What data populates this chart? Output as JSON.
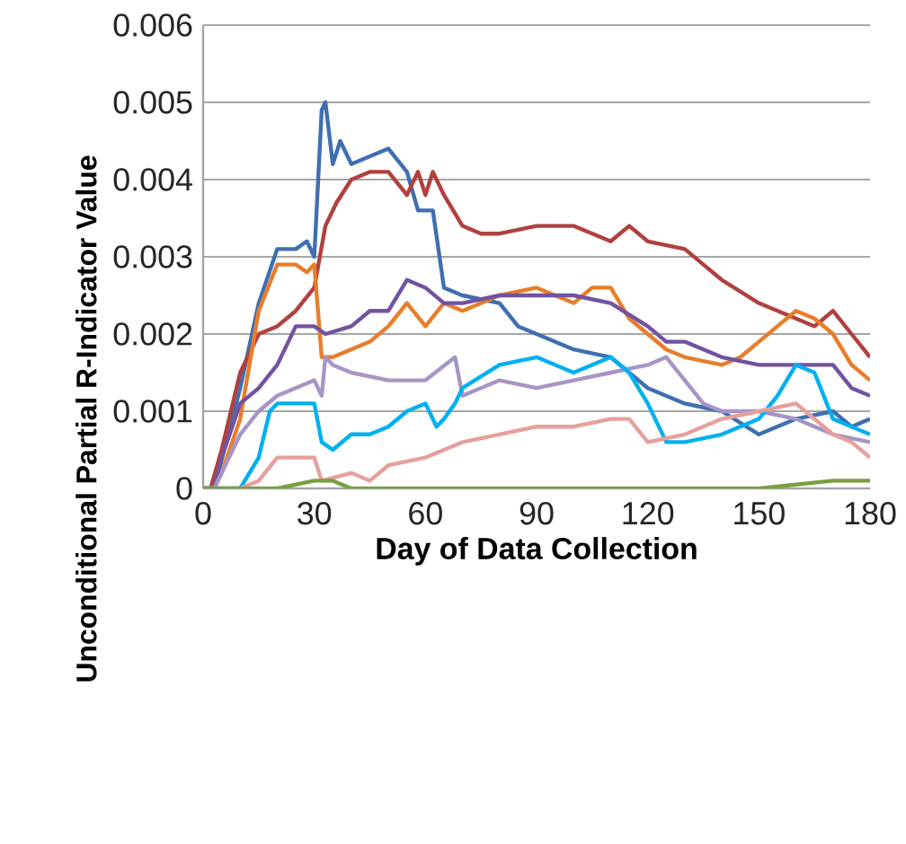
{
  "chart_data": {
    "type": "line",
    "xlabel": "Day of Data Collection",
    "ylabel": "Unconditional Partial R-Indicator Value",
    "xlim": [
      0,
      180
    ],
    "ylim": [
      0,
      0.006
    ],
    "xticks": [
      0,
      30,
      60,
      90,
      120,
      150,
      180
    ],
    "yticks": [
      0,
      0.001,
      0.002,
      0.003,
      0.004,
      0.005,
      0.006
    ],
    "grid": "y",
    "marker": "none",
    "line_style": "solid",
    "series": [
      {
        "color": "#3f6fb0",
        "x": [
          0,
          3,
          10,
          15,
          20,
          25,
          28,
          30,
          32,
          33,
          35,
          37,
          40,
          45,
          50,
          55,
          58,
          62,
          65,
          70,
          80,
          85,
          90,
          100,
          110,
          120,
          130,
          140,
          150,
          160,
          170,
          175,
          180
        ],
        "values": [
          0,
          0,
          0.0013,
          0.0024,
          0.0031,
          0.0031,
          0.0032,
          0.003,
          0.0049,
          0.005,
          0.0042,
          0.0045,
          0.0042,
          0.0043,
          0.0044,
          0.0041,
          0.0036,
          0.0036,
          0.0026,
          0.0025,
          0.0024,
          0.0021,
          0.002,
          0.0018,
          0.0017,
          0.0013,
          0.0011,
          0.001,
          0.0007,
          0.0009,
          0.001,
          0.0008,
          0.0009
        ]
      },
      {
        "color": "#b0413e",
        "x": [
          0,
          2,
          5,
          10,
          15,
          20,
          25,
          30,
          33,
          36,
          40,
          45,
          50,
          55,
          58,
          60,
          62,
          65,
          70,
          75,
          80,
          90,
          100,
          110,
          115,
          120,
          130,
          135,
          140,
          150,
          160,
          165,
          170,
          175,
          180
        ],
        "values": [
          0,
          0,
          0.0005,
          0.0015,
          0.002,
          0.0021,
          0.0023,
          0.0026,
          0.0034,
          0.0037,
          0.004,
          0.0041,
          0.0041,
          0.0038,
          0.0041,
          0.0038,
          0.0041,
          0.0038,
          0.0034,
          0.0033,
          0.0033,
          0.0034,
          0.0034,
          0.0032,
          0.0034,
          0.0032,
          0.0031,
          0.0029,
          0.0027,
          0.0024,
          0.0022,
          0.0021,
          0.0023,
          0.002,
          0.0017
        ]
      },
      {
        "color": "#e87d2a",
        "x": [
          0,
          3,
          5,
          10,
          15,
          20,
          25,
          28,
          30,
          32,
          35,
          40,
          45,
          50,
          55,
          60,
          65,
          70,
          80,
          90,
          100,
          105,
          110,
          115,
          120,
          125,
          130,
          140,
          145,
          150,
          155,
          160,
          165,
          170,
          175,
          180
        ],
        "values": [
          0,
          0,
          0.0002,
          0.0009,
          0.0023,
          0.0029,
          0.0029,
          0.0028,
          0.0029,
          0.0017,
          0.0017,
          0.0018,
          0.0019,
          0.0021,
          0.0024,
          0.0021,
          0.0024,
          0.0023,
          0.0025,
          0.0026,
          0.0024,
          0.0026,
          0.0026,
          0.0022,
          0.002,
          0.0018,
          0.0017,
          0.0016,
          0.0017,
          0.0019,
          0.0021,
          0.0023,
          0.0022,
          0.002,
          0.0016,
          0.0014
        ]
      },
      {
        "color": "#7153a0",
        "x": [
          0,
          3,
          5,
          10,
          15,
          20,
          25,
          30,
          33,
          40,
          45,
          50,
          55,
          60,
          65,
          70,
          80,
          90,
          100,
          110,
          120,
          125,
          130,
          140,
          150,
          160,
          170,
          175,
          180
        ],
        "values": [
          0,
          0,
          0.0004,
          0.0011,
          0.0013,
          0.0016,
          0.0021,
          0.0021,
          0.002,
          0.0021,
          0.0023,
          0.0023,
          0.0027,
          0.0026,
          0.0024,
          0.0024,
          0.0025,
          0.0025,
          0.0025,
          0.0024,
          0.0021,
          0.0019,
          0.0019,
          0.0017,
          0.0016,
          0.0016,
          0.0016,
          0.0013,
          0.0012
        ]
      },
      {
        "color": "#a795c5",
        "x": [
          0,
          3,
          5,
          10,
          15,
          20,
          30,
          32,
          33,
          35,
          40,
          50,
          60,
          68,
          70,
          80,
          90,
          100,
          110,
          120,
          125,
          130,
          135,
          140,
          150,
          160,
          170,
          180
        ],
        "values": [
          0,
          0,
          0.0002,
          0.0007,
          0.001,
          0.0012,
          0.0014,
          0.0012,
          0.0017,
          0.0016,
          0.0015,
          0.0014,
          0.0014,
          0.0017,
          0.0012,
          0.0014,
          0.0013,
          0.0014,
          0.0015,
          0.0016,
          0.0017,
          0.0014,
          0.0011,
          0.001,
          0.001,
          0.0009,
          0.0007,
          0.0006
        ]
      },
      {
        "color": "#00b0f0",
        "x": [
          0,
          10,
          15,
          18,
          20,
          30,
          32,
          35,
          40,
          45,
          50,
          55,
          60,
          63,
          65,
          68,
          70,
          80,
          90,
          100,
          110,
          115,
          120,
          125,
          130,
          140,
          150,
          155,
          160,
          165,
          170,
          175,
          180
        ],
        "values": [
          0,
          0,
          0.0004,
          0.001,
          0.0011,
          0.0011,
          0.0006,
          0.0005,
          0.0007,
          0.0007,
          0.0008,
          0.001,
          0.0011,
          0.0008,
          0.0009,
          0.0011,
          0.0013,
          0.0016,
          0.0017,
          0.0015,
          0.0017,
          0.0015,
          0.0011,
          0.0006,
          0.0006,
          0.0007,
          0.0009,
          0.0012,
          0.0016,
          0.0015,
          0.0009,
          0.0008,
          0.0007
        ]
      },
      {
        "color": "#e6a09c",
        "x": [
          0,
          10,
          15,
          20,
          30,
          32,
          40,
          45,
          50,
          60,
          70,
          80,
          90,
          100,
          110,
          115,
          120,
          130,
          140,
          150,
          160,
          170,
          175,
          180
        ],
        "values": [
          0,
          0,
          0.0001,
          0.0004,
          0.0004,
          0.0001,
          0.0002,
          0.0001,
          0.0003,
          0.0004,
          0.0006,
          0.0007,
          0.0008,
          0.0008,
          0.0009,
          0.0009,
          0.0006,
          0.0007,
          0.0009,
          0.001,
          0.0011,
          0.0007,
          0.0006,
          0.0004
        ]
      },
      {
        "color": "#77a03f",
        "x": [
          0,
          10,
          20,
          30,
          35,
          40,
          60,
          90,
          120,
          150,
          170,
          180
        ],
        "values": [
          0,
          0,
          0,
          0.0001,
          0.0001,
          0,
          0,
          0,
          0,
          0,
          0.0001,
          0.0001
        ]
      }
    ]
  }
}
